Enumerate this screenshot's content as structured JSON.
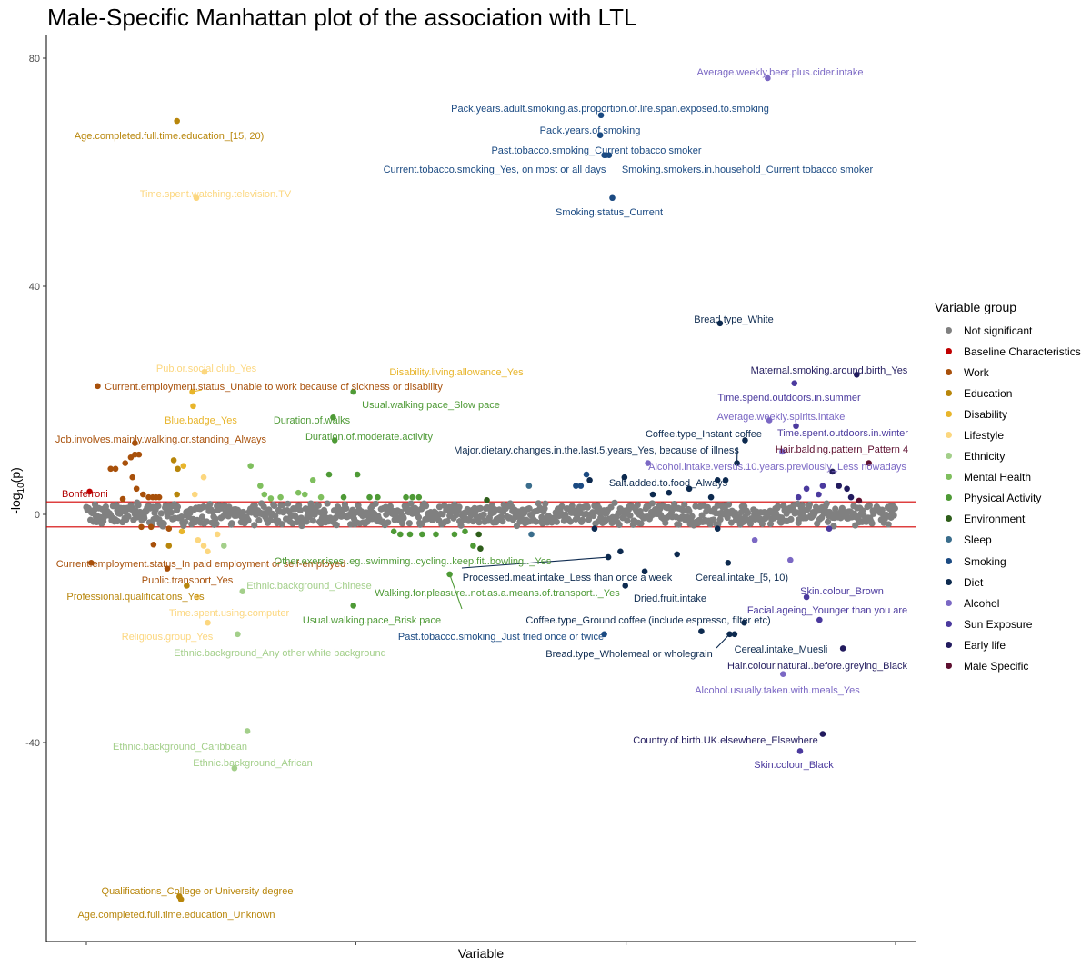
{
  "title": "Male-Specific Manhattan plot of the association with LTL",
  "chart_data": {
    "type": "scatter",
    "title": "Male-Specific Manhattan plot of the association with LTL",
    "xlabel": "Variable",
    "ylabel": "-log10(p)",
    "ylim": [
      -74,
      84
    ],
    "y_ticks": [
      "80",
      "40",
      "0",
      "-40"
    ],
    "threshold": 2.2,
    "threshold_label": "Bonferroni",
    "legend": {
      "title": "Variable group",
      "placement": "right",
      "groups": [
        {
          "name": "Not significant",
          "color": "#808080"
        },
        {
          "name": "Baseline Characteristics",
          "color": "#c00000"
        },
        {
          "name": "Work",
          "color": "#a8500a"
        },
        {
          "name": "Education",
          "color": "#b8860b"
        },
        {
          "name": "Disability",
          "color": "#e8b52b"
        },
        {
          "name": "Lifestyle",
          "color": "#fcd77f"
        },
        {
          "name": "Ethnicity",
          "color": "#a3cf8a"
        },
        {
          "name": "Mental Health",
          "color": "#7fbf5e"
        },
        {
          "name": "Physical Activity",
          "color": "#4e9a36"
        },
        {
          "name": "Environment",
          "color": "#2e5e1a"
        },
        {
          "name": "Sleep",
          "color": "#3a6d8c"
        },
        {
          "name": "Smoking",
          "color": "#1b4a82"
        },
        {
          "name": "Diet",
          "color": "#0d2a4f"
        },
        {
          "name": "Alcohol",
          "color": "#7b68c4"
        },
        {
          "name": "Sun Exposure",
          "color": "#4b3a9e"
        },
        {
          "name": "Early life",
          "color": "#221b5e"
        },
        {
          "name": "Male Specific",
          "color": "#5e1030"
        }
      ]
    },
    "labeled_points": [
      {
        "label": "Average.weekly.beer.plus.cider.intake",
        "group": "Alcohol",
        "x": 842,
        "y": 76.5
      },
      {
        "label": "Pack.years.adult.smoking.as.proportion.of.life.span.exposed.to.smoking",
        "group": "Smoking",
        "x": 636,
        "y": 70.0
      },
      {
        "label": "Age.completed.full.time.education_[15, 20)",
        "group": "Education",
        "x": 112,
        "y": 69.0
      },
      {
        "label": "Pack.years.of.smoking",
        "group": "Smoking",
        "x": 635,
        "y": 66.5
      },
      {
        "label": "Past.tobacco.smoking_Current tobacco smoker",
        "group": "Smoking",
        "x": 642,
        "y": 63.0
      },
      {
        "label": "Current.tobacco.smoking_Yes, on most or all days",
        "group": "Smoking",
        "x": 640,
        "y": 63.0
      },
      {
        "label": "Smoking.smokers.in.household_Current tobacco smoker",
        "group": "Smoking",
        "x": 646,
        "y": 63.0
      },
      {
        "label": "Time.spent.watching.television.TV",
        "group": "Lifestyle",
        "x": 136,
        "y": 55.5
      },
      {
        "label": "Smoking.status_Current",
        "group": "Smoking",
        "x": 650,
        "y": 55.5
      },
      {
        "label": "Bread.type_White",
        "group": "Diet",
        "x": 783,
        "y": 33.5
      },
      {
        "label": "Pub.or.social.club_Yes",
        "group": "Lifestyle",
        "x": 146,
        "y": 25.0
      },
      {
        "label": "Disability.living.allowance_Yes",
        "group": "Disability",
        "x": 131,
        "y": 21.5
      },
      {
        "label": "Current.employment.status_Unable to work because of sickness or disability",
        "group": "Work",
        "x": 14,
        "y": 22.5
      },
      {
        "label": "Maternal.smoking.around.birth_Yes",
        "group": "Early life",
        "x": 952,
        "y": 24.5
      },
      {
        "label": "Usual.walking.pace_Slow pace",
        "group": "Physical Activity",
        "x": 330,
        "y": 21.5
      },
      {
        "label": "Time.spend.outdoors.in.summer",
        "group": "Sun Exposure",
        "x": 875,
        "y": 23.0
      },
      {
        "label": "Blue.badge_Yes",
        "group": "Disability",
        "x": 132,
        "y": 19.0
      },
      {
        "label": "Duration.of.walks",
        "group": "Physical Activity",
        "x": 305,
        "y": 17.0
      },
      {
        "label": "Average.weekly.spirits.intake",
        "group": "Alcohol",
        "x": 844,
        "y": 16.5
      },
      {
        "label": "Duration.of.moderate.activity",
        "group": "Physical Activity",
        "x": 307,
        "y": 13.0
      },
      {
        "label": "Job.involves.mainly.walking.or.standing_Always",
        "group": "Work",
        "x": 60,
        "y": 12.5
      },
      {
        "label": "Coffee.type_Instant coffee",
        "group": "Diet",
        "x": 814,
        "y": 13.0
      },
      {
        "label": "Time.spent.outdoors.in.winter",
        "group": "Sun Exposure",
        "x": 877,
        "y": 15.5
      },
      {
        "label": "Major.dietary.changes.in.the.last.5.years_Yes, because of illness",
        "group": "Diet",
        "x": 804,
        "y": 9.0
      },
      {
        "label": "Hair.balding.pattern_Pattern 4",
        "group": "Male Specific",
        "x": 967,
        "y": 9.0
      },
      {
        "label": "Alcohol.intake.versus.10.years.previously_Less nowadays",
        "group": "Alcohol",
        "x": 694,
        "y": 9.0
      },
      {
        "label": "Salt.added.to.food_Always",
        "group": "Diet",
        "x": 665,
        "y": 6.5
      },
      {
        "label": "Current.employment.status_In paid employment or self-employed",
        "group": "Work",
        "x": 6,
        "y": -8.5
      },
      {
        "label": "Other.exercises..eg..swimming..cycling..keep.fit..bowling.._Yes",
        "group": "Physical Activity",
        "x": 478,
        "y": -5.5
      },
      {
        "label": "Processed.meat.intake_Less than once a week",
        "group": "Diet",
        "x": 645,
        "y": -7.5
      },
      {
        "label": "Public.transport_Yes",
        "group": "Work",
        "x": 100,
        "y": -9.5
      },
      {
        "label": "Cereal.intake_[5, 10)",
        "group": "Diet",
        "x": 793,
        "y": -8.5
      },
      {
        "label": "Ethnic.background_Chinese",
        "group": "Ethnicity",
        "x": 193,
        "y": -13.5
      },
      {
        "label": "Skin.colour_Brown",
        "group": "Sun Exposure",
        "x": 890,
        "y": -14.5
      },
      {
        "label": "Walking.for.pleasure..not.as.a.means.of.transport.._Yes",
        "group": "Physical Activity",
        "x": 449,
        "y": -10.5
      },
      {
        "label": "Dried.fruit.intake",
        "group": "Diet",
        "x": 666,
        "y": -12.5
      },
      {
        "label": "Professional.qualifications_Yes",
        "group": "Education",
        "x": 124,
        "y": -12.5
      },
      {
        "label": "Time.spent.using.computer",
        "group": "Lifestyle",
        "x": 137,
        "y": -14.5
      },
      {
        "label": "Facial.ageing_Younger than you are",
        "group": "Sun Exposure",
        "x": 906,
        "y": -18.5
      },
      {
        "label": "Usual.walking.pace_Brisk pace",
        "group": "Physical Activity",
        "x": 330,
        "y": -16.0
      },
      {
        "label": "Coffee.type_Ground coffee (include espresso, filter etc)",
        "group": "Diet",
        "x": 813,
        "y": -19.0
      },
      {
        "label": "Past.tobacco.smoking_Just tried once or twice",
        "group": "Smoking",
        "x": 640,
        "y": -21.0
      },
      {
        "label": "Cereal.intake_Muesli",
        "group": "Diet",
        "x": 801,
        "y": -21.0
      },
      {
        "label": "Religious.group_Yes",
        "group": "Lifestyle",
        "x": 150,
        "y": -19.0
      },
      {
        "label": "Bread.type_Wholemeal or wholegrain",
        "group": "Diet",
        "x": 795,
        "y": -21.0
      },
      {
        "label": "Ethnic.background_Any other white background",
        "group": "Ethnicity",
        "x": 187,
        "y": -21.0
      },
      {
        "label": "Hair.colour.natural..before.greying_Black",
        "group": "Early life",
        "x": 935,
        "y": -23.5
      },
      {
        "label": "Alcohol.usually.taken.with.meals_Yes",
        "group": "Alcohol",
        "x": 861,
        "y": -28.0
      },
      {
        "label": "Country.of.birth.UK.elsewhere_Elsewhere",
        "group": "Early life",
        "x": 910,
        "y": -38.5
      },
      {
        "label": "Ethnic.background_Caribbean",
        "group": "Ethnicity",
        "x": 199,
        "y": -38.0
      },
      {
        "label": "Skin.colour_Black",
        "group": "Sun Exposure",
        "x": 882,
        "y": -41.5
      },
      {
        "label": "Ethnic.background_African",
        "group": "Ethnicity",
        "x": 183,
        "y": -44.5
      },
      {
        "label": "Qualifications_College or University degree",
        "group": "Education",
        "x": 115,
        "y": -67.0
      },
      {
        "label": "Age.completed.full.time.education_Unknown",
        "group": "Education",
        "x": 117,
        "y": -67.5
      }
    ],
    "other_significant_points": [
      {
        "group": "Baseline Characteristics",
        "x": 4,
        "y": 4.0
      },
      {
        "group": "Work",
        "x": 30,
        "y": 8.0
      },
      {
        "group": "Work",
        "x": 36,
        "y": 8.0
      },
      {
        "group": "Work",
        "x": 48,
        "y": 9.0
      },
      {
        "group": "Work",
        "x": 55,
        "y": 10.0
      },
      {
        "group": "Work",
        "x": 60,
        "y": 10.5
      },
      {
        "group": "Work",
        "x": 65,
        "y": 10.5
      },
      {
        "group": "Work",
        "x": 57,
        "y": 6.5
      },
      {
        "group": "Work",
        "x": 62,
        "y": 4.5
      },
      {
        "group": "Work",
        "x": 70,
        "y": 3.5
      },
      {
        "group": "Work",
        "x": 77,
        "y": 3.0
      },
      {
        "group": "Work",
        "x": 82,
        "y": 3.0
      },
      {
        "group": "Work",
        "x": 86,
        "y": 3.0
      },
      {
        "group": "Work",
        "x": 90,
        "y": 3.0
      },
      {
        "group": "Work",
        "x": 45,
        "y": 2.7
      },
      {
        "group": "Work",
        "x": 68,
        "y": -2.2
      },
      {
        "group": "Work",
        "x": 80,
        "y": -2.2
      },
      {
        "group": "Work",
        "x": 83,
        "y": -5.3
      },
      {
        "group": "Work",
        "x": 102,
        "y": -2.5
      },
      {
        "group": "Education",
        "x": 102,
        "y": -5.5
      },
      {
        "group": "Education",
        "x": 108,
        "y": 9.5
      },
      {
        "group": "Education",
        "x": 113,
        "y": 8.0
      },
      {
        "group": "Education",
        "x": 112,
        "y": 3.5
      },
      {
        "group": "Disability",
        "x": 120,
        "y": 8.5
      },
      {
        "group": "Disability",
        "x": 118,
        "y": -3.0
      },
      {
        "group": "Lifestyle",
        "x": 145,
        "y": 6.5
      },
      {
        "group": "Lifestyle",
        "x": 134,
        "y": 3.5
      },
      {
        "group": "Lifestyle",
        "x": 138,
        "y": -4.5
      },
      {
        "group": "Lifestyle",
        "x": 145,
        "y": -5.5
      },
      {
        "group": "Lifestyle",
        "x": 150,
        "y": -6.5
      },
      {
        "group": "Lifestyle",
        "x": 162,
        "y": -3.5
      },
      {
        "group": "Ethnicity",
        "x": 170,
        "y": -5.5
      },
      {
        "group": "Mental Health",
        "x": 203,
        "y": 8.5
      },
      {
        "group": "Mental Health",
        "x": 215,
        "y": 5.0
      },
      {
        "group": "Mental Health",
        "x": 220,
        "y": 3.5
      },
      {
        "group": "Mental Health",
        "x": 228,
        "y": 2.8
      },
      {
        "group": "Mental Health",
        "x": 240,
        "y": 3.0
      },
      {
        "group": "Mental Health",
        "x": 262,
        "y": 3.8
      },
      {
        "group": "Mental Health",
        "x": 270,
        "y": 3.5
      },
      {
        "group": "Mental Health",
        "x": 280,
        "y": 6.0
      },
      {
        "group": "Mental Health",
        "x": 290,
        "y": 3.0
      },
      {
        "group": "Physical Activity",
        "x": 300,
        "y": 7.0
      },
      {
        "group": "Physical Activity",
        "x": 318,
        "y": 3.0
      },
      {
        "group": "Physical Activity",
        "x": 335,
        "y": 7.0
      },
      {
        "group": "Physical Activity",
        "x": 350,
        "y": 3.0
      },
      {
        "group": "Physical Activity",
        "x": 360,
        "y": 3.0
      },
      {
        "group": "Physical Activity",
        "x": 395,
        "y": 3.0
      },
      {
        "group": "Physical Activity",
        "x": 403,
        "y": 3.0
      },
      {
        "group": "Physical Activity",
        "x": 411,
        "y": 3.0
      },
      {
        "group": "Physical Activity",
        "x": 380,
        "y": -3.0
      },
      {
        "group": "Physical Activity",
        "x": 388,
        "y": -3.5
      },
      {
        "group": "Physical Activity",
        "x": 400,
        "y": -3.5
      },
      {
        "group": "Physical Activity",
        "x": 415,
        "y": -3.5
      },
      {
        "group": "Physical Activity",
        "x": 432,
        "y": -3.5
      },
      {
        "group": "Physical Activity",
        "x": 455,
        "y": -3.5
      },
      {
        "group": "Physical Activity",
        "x": 468,
        "y": -3.0
      },
      {
        "group": "Environment",
        "x": 485,
        "y": -3.5
      },
      {
        "group": "Environment",
        "x": 487,
        "y": -6.0
      },
      {
        "group": "Environment",
        "x": 495,
        "y": 2.5
      },
      {
        "group": "Sleep",
        "x": 547,
        "y": 5.0
      },
      {
        "group": "Sleep",
        "x": 550,
        "y": -3.5
      },
      {
        "group": "Smoking",
        "x": 605,
        "y": 5.0
      },
      {
        "group": "Smoking",
        "x": 611,
        "y": 5.0
      },
      {
        "group": "Smoking",
        "x": 618,
        "y": 7.0
      },
      {
        "group": "Diet",
        "x": 622,
        "y": 6.0
      },
      {
        "group": "Diet",
        "x": 628,
        "y": -2.5
      },
      {
        "group": "Diet",
        "x": 660,
        "y": -6.5
      },
      {
        "group": "Diet",
        "x": 690,
        "y": -10.0
      },
      {
        "group": "Diet",
        "x": 700,
        "y": 3.5
      },
      {
        "group": "Diet",
        "x": 720,
        "y": 3.8
      },
      {
        "group": "Diet",
        "x": 745,
        "y": 4.5
      },
      {
        "group": "Diet",
        "x": 780,
        "y": 6.0
      },
      {
        "group": "Diet",
        "x": 790,
        "y": 6.0
      },
      {
        "group": "Diet",
        "x": 772,
        "y": 3.0
      },
      {
        "group": "Diet",
        "x": 730,
        "y": -7.0
      },
      {
        "group": "Diet",
        "x": 760,
        "y": -20.5
      },
      {
        "group": "Diet",
        "x": 780,
        "y": -2.5
      },
      {
        "group": "Alcohol",
        "x": 826,
        "y": -4.5
      },
      {
        "group": "Alcohol",
        "x": 870,
        "y": -8.0
      },
      {
        "group": "Alcohol",
        "x": 860,
        "y": 11.0
      },
      {
        "group": "Sun Exposure",
        "x": 880,
        "y": 3.0
      },
      {
        "group": "Sun Exposure",
        "x": 890,
        "y": 4.5
      },
      {
        "group": "Sun Exposure",
        "x": 905,
        "y": 3.5
      },
      {
        "group": "Sun Exposure",
        "x": 910,
        "y": 5.0
      },
      {
        "group": "Sun Exposure",
        "x": 918,
        "y": -2.5
      },
      {
        "group": "Early life",
        "x": 922,
        "y": 7.5
      },
      {
        "group": "Early life",
        "x": 930,
        "y": 5.0
      },
      {
        "group": "Early life",
        "x": 940,
        "y": 4.5
      },
      {
        "group": "Early life",
        "x": 945,
        "y": 3.0
      },
      {
        "group": "Male Specific",
        "x": 955,
        "y": 2.4
      }
    ]
  }
}
